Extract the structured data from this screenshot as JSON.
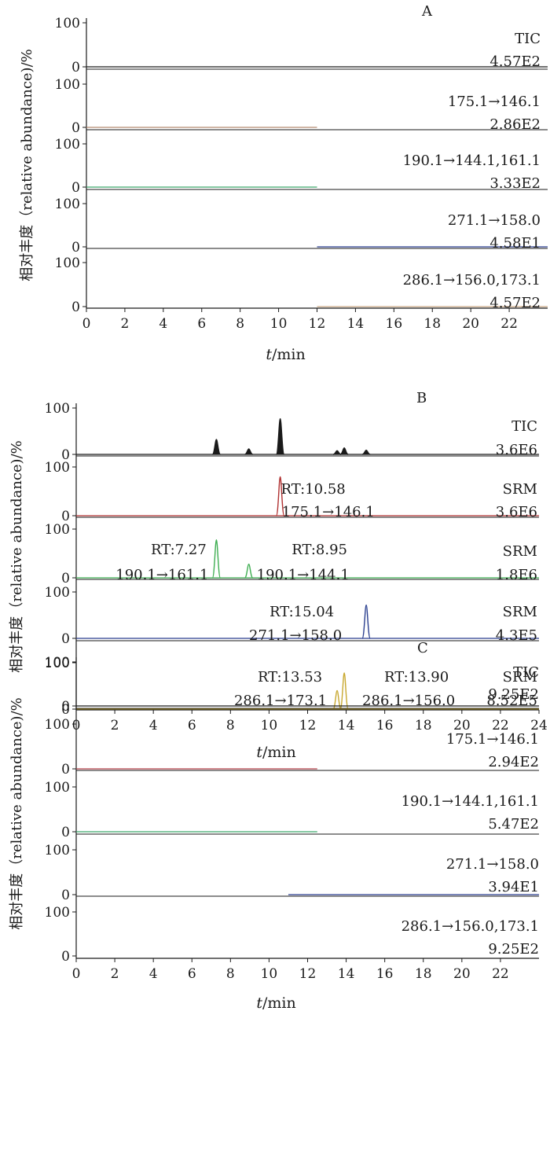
{
  "chart_data": [
    {
      "type": "line",
      "panel_label": "A",
      "ylabel": "相对丰度（relative abundance)/%",
      "xlabel_var": "t",
      "xlabel_unit": "/min",
      "xlim": [
        0,
        24
      ],
      "x_ticks": [
        "0",
        "2",
        "4",
        "6",
        "8",
        "10",
        "12",
        "14",
        "16",
        "18",
        "20",
        "22"
      ],
      "grid": false,
      "traces": [
        {
          "ylim": [
            0,
            100
          ],
          "y_ticks": [
            "100",
            "0"
          ],
          "labels": [
            "TIC",
            "4.57E2"
          ],
          "color": "#1a1a1a",
          "segments": [
            {
              "x": [
                0,
                24
              ],
              "level": 0
            }
          ]
        },
        {
          "ylim": [
            0,
            100
          ],
          "y_ticks": [
            "100",
            "0"
          ],
          "labels": [
            "175.1→146.1",
            "2.86E2"
          ],
          "color": "#b58a72",
          "segments": [
            {
              "x": [
                0,
                12
              ],
              "level": 0
            }
          ]
        },
        {
          "ylim": [
            0,
            100
          ],
          "y_ticks": [
            "100",
            "0"
          ],
          "labels": [
            "190.1→144.1,161.1",
            "3.33E2"
          ],
          "color": "#3aa66a",
          "segments": [
            {
              "x": [
                0,
                12
              ],
              "level": 0
            }
          ]
        },
        {
          "ylim": [
            0,
            100
          ],
          "y_ticks": [
            "100",
            "0"
          ],
          "labels": [
            "271.1→158.0",
            "4.58E1"
          ],
          "color": "#2a3f8f",
          "segments": [
            {
              "x": [
                12,
                24
              ],
              "level": 0
            }
          ]
        },
        {
          "ylim": [
            0,
            100
          ],
          "y_ticks": [
            "100",
            "0"
          ],
          "labels": [
            "286.1→156.0,173.1",
            "4.57E2"
          ],
          "color": "#c9a784",
          "segments": [
            {
              "x": [
                12,
                24
              ],
              "level": 0
            }
          ]
        }
      ]
    },
    {
      "type": "line",
      "panel_label": "B",
      "ylabel": "相对丰度（relative abundance)/%",
      "xlabel_var": "t",
      "xlabel_unit": "/min",
      "xlim": [
        0,
        24
      ],
      "x_ticks": [
        "0",
        "2",
        "4",
        "6",
        "8",
        "10",
        "12",
        "14",
        "16",
        "18",
        "20",
        "22",
        "24"
      ],
      "grid": false,
      "traces": [
        {
          "ylim": [
            0,
            100
          ],
          "y_ticks": [
            "100",
            "0"
          ],
          "labels": [
            "TIC",
            "3.6E6"
          ],
          "color": "#1a1a1a",
          "segments": [
            {
              "x": [
                0,
                24
              ],
              "level": 0
            }
          ],
          "peaks": [
            {
              "rt": 7.27,
              "height": 32
            },
            {
              "rt": 8.95,
              "height": 12
            },
            {
              "rt": 10.58,
              "height": 77
            },
            {
              "rt": 13.53,
              "height": 8
            },
            {
              "rt": 13.9,
              "height": 14
            },
            {
              "rt": 15.04,
              "height": 9
            }
          ],
          "annotations": []
        },
        {
          "ylim": [
            0,
            100
          ],
          "y_ticks": [
            "100",
            "0"
          ],
          "labels": [
            "SRM",
            "3.6E6"
          ],
          "color": "#b03030",
          "segments": [
            {
              "x": [
                0,
                24
              ],
              "level": 0
            }
          ],
          "peaks": [
            {
              "rt": 10.58,
              "height": 80
            }
          ],
          "annotations": [
            {
              "rt_text": "RT:10.58",
              "transition": "175.1→146.1"
            }
          ]
        },
        {
          "ylim": [
            0,
            100
          ],
          "y_ticks": [
            "100",
            "0"
          ],
          "labels": [
            "SRM",
            "1.8E6"
          ],
          "color": "#3fae52",
          "segments": [
            {
              "x": [
                0,
                24
              ],
              "level": 0
            }
          ],
          "peaks": [
            {
              "rt": 7.27,
              "height": 78
            },
            {
              "rt": 8.95,
              "height": 28
            }
          ],
          "annotations": [
            {
              "rt_text": "RT:7.27",
              "transition": "190.1→161.1"
            },
            {
              "rt_text": "RT:8.95",
              "transition": "190.1→144.1"
            }
          ]
        },
        {
          "ylim": [
            0,
            100
          ],
          "y_ticks": [
            "100",
            "0"
          ],
          "labels": [
            "SRM",
            "4.3E5"
          ],
          "color": "#2a3f8f",
          "segments": [
            {
              "x": [
                0,
                24
              ],
              "level": 0
            }
          ],
          "peaks": [
            {
              "rt": 15.04,
              "height": 72
            }
          ],
          "annotations": [
            {
              "rt_text": "RT:15.04",
              "transition": "271.1→158.0"
            }
          ]
        },
        {
          "ylim": [
            0,
            100
          ],
          "y_ticks": [
            "100",
            "0"
          ],
          "labels": [
            "SRM",
            "8.52E5"
          ],
          "color": "#c8a830",
          "segments": [
            {
              "x": [
                0,
                24
              ],
              "level": 0
            }
          ],
          "peaks": [
            {
              "rt": 13.53,
              "height": 40
            },
            {
              "rt": 13.9,
              "height": 78
            }
          ],
          "annotations": [
            {
              "rt_text": "RT:13.53",
              "transition": "286.1→173.1"
            },
            {
              "rt_text": "RT:13.90",
              "transition": "286.1→156.0"
            }
          ]
        }
      ]
    },
    {
      "type": "line",
      "panel_label": "C",
      "ylabel": "相对丰度（relative abundance)/%",
      "xlabel_var": "t",
      "xlabel_unit": "/min",
      "xlim": [
        0,
        24
      ],
      "x_ticks": [
        "0",
        "2",
        "4",
        "6",
        "8",
        "10",
        "12",
        "14",
        "16",
        "18",
        "20",
        "22"
      ],
      "grid": false,
      "traces": [
        {
          "ylim": [
            0,
            100
          ],
          "y_ticks": [
            "100",
            "0"
          ],
          "labels": [
            "TIC",
            "9.25E2"
          ],
          "color": "#1a1a1a",
          "segments": [
            {
              "x": [
                0,
                24
              ],
              "level": 0
            }
          ]
        },
        {
          "ylim": [
            0,
            100
          ],
          "y_ticks": [
            "100",
            "0"
          ],
          "labels": [
            "175.1→146.1",
            "2.94E2"
          ],
          "color": "#b3404a",
          "segments": [
            {
              "x": [
                0,
                12.5
              ],
              "level": 0
            }
          ]
        },
        {
          "ylim": [
            0,
            100
          ],
          "y_ticks": [
            "100",
            "0"
          ],
          "labels": [
            "190.1→144.1,161.1",
            "5.47E2"
          ],
          "color": "#3aa66a",
          "segments": [
            {
              "x": [
                0,
                12.5
              ],
              "level": 0
            }
          ]
        },
        {
          "ylim": [
            0,
            100
          ],
          "y_ticks": [
            "100",
            "0"
          ],
          "labels": [
            "271.1→158.0",
            "3.94E1"
          ],
          "color": "#2a3f8f",
          "segments": [
            {
              "x": [
                11,
                24
              ],
              "level": 0
            }
          ]
        },
        {
          "ylim": [
            0,
            100
          ],
          "y_ticks": [
            "100",
            "0"
          ],
          "labels": [
            "286.1→156.0,173.1",
            "9.25E2"
          ],
          "color": "#c9a784",
          "segments": []
        }
      ]
    }
  ]
}
